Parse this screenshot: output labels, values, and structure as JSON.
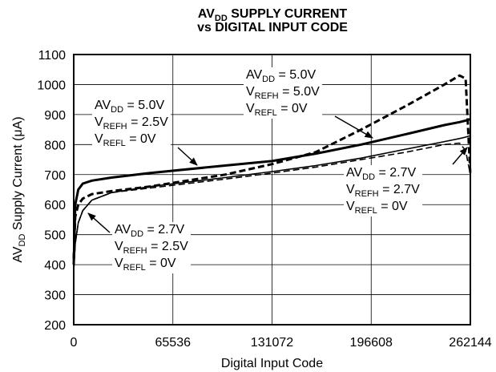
{
  "chart_data": {
    "type": "line",
    "title": [
      [
        "AV",
        "DD",
        " SUPPLY CURRENT"
      ],
      [
        "vs DIGITAL INPUT CODE"
      ]
    ],
    "x_label": [
      "Digital Input Code"
    ],
    "y_label": [
      "AV",
      "DD",
      " Supply Current (μA)"
    ],
    "x": [
      0,
      1000,
      3000,
      6000,
      12000,
      25000,
      50000,
      100000,
      131072,
      160000,
      190000,
      220000,
      245000,
      255000,
      259000,
      262144
    ],
    "series": [
      {
        "color": "#000000",
        "style": "dashed",
        "weight": "heavy",
        "values": [
          420,
          560,
          600,
          620,
          635,
          645,
          660,
          700,
          735,
          775,
          850,
          930,
          1000,
          1030,
          1020,
          700
        ]
      },
      {
        "color": "#000000",
        "style": "solid",
        "weight": "heavy",
        "values": [
          400,
          600,
          650,
          670,
          680,
          690,
          705,
          730,
          745,
          770,
          800,
          835,
          865,
          875,
          880,
          885
        ]
      },
      {
        "color": "#000000",
        "style": "solid",
        "weight": "light",
        "values": [
          380,
          470,
          540,
          580,
          615,
          640,
          660,
          690,
          710,
          730,
          755,
          785,
          810,
          820,
          825,
          830
        ]
      },
      {
        "color": "#000000",
        "style": "dashed",
        "weight": "light",
        "values": [
          380,
          470,
          540,
          580,
          615,
          640,
          655,
          685,
          705,
          725,
          750,
          775,
          800,
          805,
          780,
          700
        ]
      }
    ],
    "annotations": [
      [
        [
          "AV",
          "DD",
          " = 5.0V"
        ],
        [
          "V",
          "REFH",
          " = 5.0V"
        ],
        [
          "V",
          "REFL",
          " = 0V"
        ]
      ],
      [
        [
          "AV",
          "DD",
          " = 5.0V"
        ],
        [
          "V",
          "REFH",
          " = 2.5V"
        ],
        [
          "V",
          "REFL",
          " = 0V"
        ]
      ],
      [
        [
          "AV",
          "DD",
          " = 2.7V"
        ],
        [
          "V",
          "REFH",
          " = 2.5V"
        ],
        [
          "V",
          "REFL",
          " = 0V"
        ]
      ],
      [
        [
          "AV",
          "DD",
          " = 2.7V"
        ],
        [
          "V",
          "REFH",
          " = 2.7V"
        ],
        [
          "V",
          "REFL",
          " = 0V"
        ]
      ]
    ],
    "xlim": [
      0,
      262144
    ],
    "xticks": [
      0,
      65536,
      131072,
      196608,
      262144
    ],
    "ylim": [
      200,
      1100
    ],
    "yticks": [
      200,
      300,
      400,
      500,
      600,
      700,
      800,
      900,
      1000,
      1100
    ],
    "grid": true
  }
}
